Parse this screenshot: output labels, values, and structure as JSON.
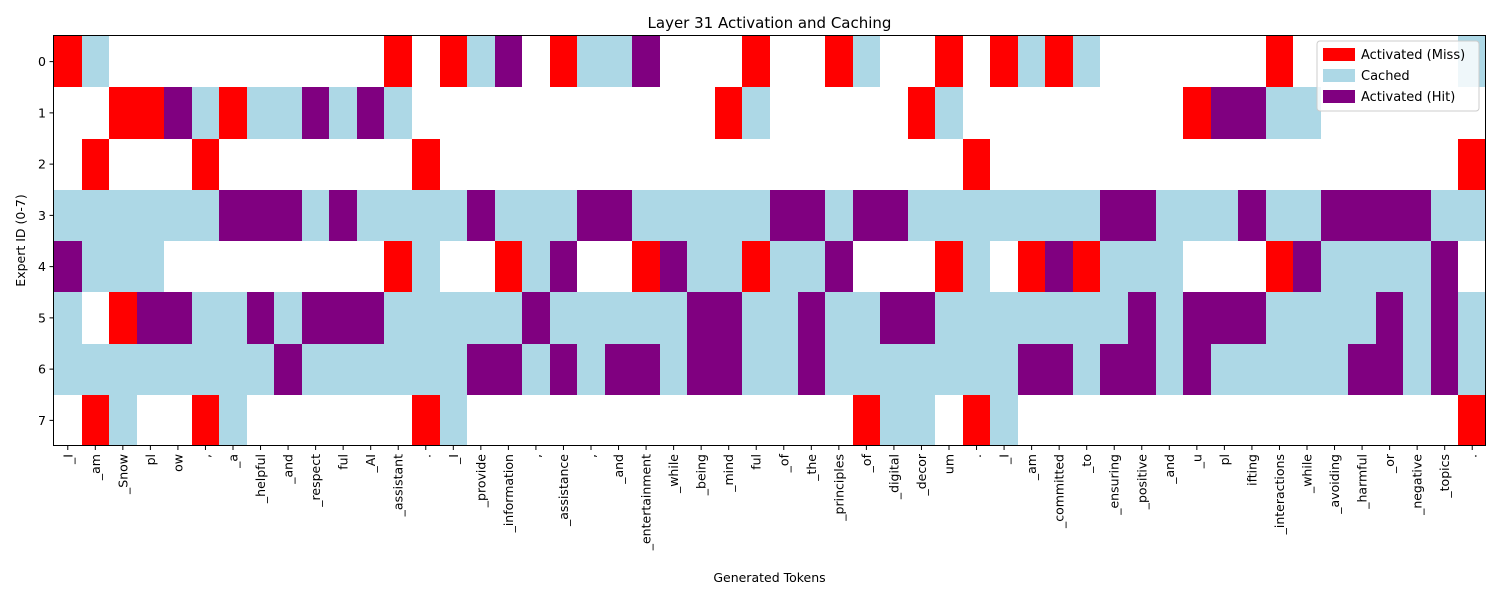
{
  "chart_data": {
    "type": "heatmap",
    "title": "Layer 31 Activation and Caching",
    "xlabel": "Generated Tokens",
    "ylabel": "Expert ID (0-7)",
    "y_categories": [
      "0",
      "1",
      "2",
      "3",
      "4",
      "5",
      "6",
      "7"
    ],
    "x_categories": [
      "_I",
      "_am",
      "_Snow",
      "pl",
      "ow",
      ",",
      "_a",
      "_helpful",
      "_and",
      "_respect",
      "ful",
      "_AI",
      "_assistant",
      ".",
      "_I",
      "_provide",
      "_information",
      ",",
      "_assistance",
      ",",
      "_and",
      "_entertainment",
      "_while",
      "_being",
      "_mind",
      "ful",
      "_of",
      "_the",
      "_principles",
      "_of",
      "_digital",
      "_decor",
      "um",
      ".",
      "_I",
      "_am",
      "_committed",
      "_to",
      "_ensuring",
      "_positive",
      "_and",
      "_u",
      "pl",
      "ifting",
      "_interactions",
      "_while",
      "_avoiding",
      "_harmful",
      "_or",
      "_negative",
      "_topics",
      "."
    ],
    "state_codes": {
      "0": "none",
      "1": "Activated (Miss)",
      "2": "Cached",
      "3": "Activated (Hit)"
    },
    "grid": [
      [
        1,
        2,
        0,
        0,
        0,
        0,
        0,
        0,
        0,
        0,
        0,
        0,
        1,
        0,
        1,
        2,
        3,
        0,
        1,
        2,
        2,
        3,
        0,
        0,
        0,
        1,
        0,
        0,
        1,
        2,
        0,
        0,
        1,
        0,
        1,
        2,
        1,
        2,
        0,
        0,
        0,
        0,
        0,
        0,
        1,
        0,
        0,
        0,
        0,
        0,
        0,
        2
      ],
      [
        0,
        0,
        1,
        1,
        3,
        2,
        1,
        2,
        2,
        3,
        2,
        3,
        2,
        0,
        0,
        0,
        0,
        0,
        0,
        0,
        0,
        0,
        0,
        0,
        1,
        2,
        0,
        0,
        0,
        0,
        0,
        1,
        2,
        0,
        0,
        0,
        0,
        0,
        0,
        0,
        0,
        1,
        3,
        3,
        2,
        2,
        0,
        0,
        0,
        0,
        0,
        0
      ],
      [
        0,
        1,
        0,
        0,
        0,
        1,
        0,
        0,
        0,
        0,
        0,
        0,
        0,
        1,
        0,
        0,
        0,
        0,
        0,
        0,
        0,
        0,
        0,
        0,
        0,
        0,
        0,
        0,
        0,
        0,
        0,
        0,
        0,
        1,
        0,
        0,
        0,
        0,
        0,
        0,
        0,
        0,
        0,
        0,
        0,
        0,
        0,
        0,
        0,
        0,
        0,
        1
      ],
      [
        2,
        2,
        2,
        2,
        2,
        2,
        3,
        3,
        3,
        2,
        3,
        2,
        2,
        2,
        2,
        3,
        2,
        2,
        2,
        3,
        3,
        2,
        2,
        2,
        2,
        2,
        3,
        3,
        2,
        3,
        3,
        2,
        2,
        2,
        2,
        2,
        2,
        2,
        3,
        3,
        2,
        2,
        2,
        3,
        2,
        2,
        3,
        3,
        3,
        3,
        2,
        2
      ],
      [
        3,
        2,
        2,
        2,
        0,
        0,
        0,
        0,
        0,
        0,
        0,
        0,
        1,
        2,
        0,
        0,
        1,
        2,
        3,
        0,
        0,
        1,
        3,
        2,
        2,
        1,
        2,
        2,
        3,
        0,
        0,
        0,
        1,
        2,
        0,
        1,
        3,
        1,
        2,
        2,
        2,
        0,
        0,
        0,
        1,
        3,
        2,
        2,
        2,
        2,
        3,
        0
      ],
      [
        2,
        0,
        1,
        3,
        3,
        2,
        2,
        3,
        2,
        3,
        3,
        3,
        2,
        2,
        2,
        2,
        2,
        3,
        2,
        2,
        2,
        2,
        2,
        3,
        3,
        2,
        2,
        3,
        2,
        2,
        3,
        3,
        2,
        2,
        2,
        2,
        2,
        2,
        2,
        3,
        2,
        3,
        3,
        3,
        2,
        2,
        2,
        2,
        3,
        2,
        3,
        2
      ],
      [
        2,
        2,
        2,
        2,
        2,
        2,
        2,
        2,
        3,
        2,
        2,
        2,
        2,
        2,
        2,
        3,
        3,
        2,
        3,
        2,
        3,
        3,
        2,
        3,
        3,
        2,
        2,
        3,
        2,
        2,
        2,
        2,
        2,
        2,
        2,
        3,
        3,
        2,
        3,
        3,
        2,
        3,
        2,
        2,
        2,
        2,
        2,
        3,
        3,
        2,
        3,
        2
      ],
      [
        0,
        1,
        2,
        0,
        0,
        1,
        2,
        0,
        0,
        0,
        0,
        0,
        0,
        1,
        2,
        0,
        0,
        0,
        0,
        0,
        0,
        0,
        0,
        0,
        0,
        0,
        0,
        0,
        0,
        1,
        2,
        2,
        0,
        1,
        2,
        0,
        0,
        0,
        0,
        0,
        0,
        0,
        0,
        0,
        0,
        0,
        0,
        0,
        0,
        0,
        0,
        1
      ]
    ],
    "colors": {
      "none": "#ffffff",
      "miss": "#ff0000",
      "cached": "#add8e6",
      "hit": "#800080"
    },
    "legend": {
      "position": "top-right",
      "items": [
        {
          "label": "Activated (Miss)",
          "color": "#ff0000"
        },
        {
          "label": "Cached",
          "color": "#add8e6"
        },
        {
          "label": "Activated (Hit)",
          "color": "#800080"
        }
      ]
    }
  }
}
